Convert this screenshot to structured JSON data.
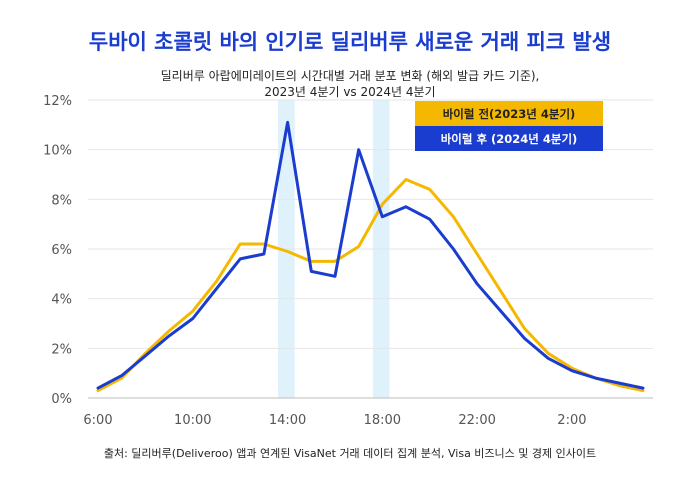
{
  "chart_data": {
    "type": "line",
    "title": "두바이 초콜릿 바의 인기로 딜리버루 새로운 거래 피크 발생",
    "subtitle_line1": "딜리버루 아랍에미레이트의 시간대별 거래 분포 변화 (해외 발급 카드 기준),",
    "subtitle_line2": "2023년 4분기 vs 2024년 4분기",
    "xlabel": "",
    "ylabel": "",
    "x": [
      6,
      7,
      8,
      9,
      10,
      11,
      12,
      13,
      14,
      15,
      16,
      17,
      18,
      19,
      20,
      21,
      22,
      23,
      24,
      25,
      26,
      27,
      28,
      29
    ],
    "x_tick_labels": [
      "6:00",
      "10:00",
      "14:00",
      "18:00",
      "22:00",
      "2:00"
    ],
    "x_tick_values": [
      6,
      10,
      14,
      18,
      22,
      26
    ],
    "xlim": [
      6,
      29
    ],
    "y_tick_labels": [
      "0%",
      "2%",
      "4%",
      "6%",
      "8%",
      "10%",
      "12%"
    ],
    "y_tick_values": [
      0,
      2,
      4,
      6,
      8,
      10,
      12
    ],
    "ylim": [
      0,
      12
    ],
    "grid": "horizontal",
    "legend_position": "top-right",
    "highlight_bands": [
      [
        13.6,
        14.3
      ],
      [
        17.6,
        18.3
      ]
    ],
    "series": [
      {
        "name": "바이럴 전(2023년 4분기)",
        "color": "#f5b800",
        "values": [
          0.3,
          0.8,
          1.8,
          2.7,
          3.5,
          4.7,
          6.2,
          6.2,
          5.9,
          5.5,
          5.5,
          6.1,
          7.8,
          8.8,
          8.4,
          7.3,
          5.8,
          4.3,
          2.8,
          1.8,
          1.2,
          0.8,
          0.5,
          0.3
        ]
      },
      {
        "name": "바이럴 후 (2024년 4분기)",
        "color": "#1a3ccf",
        "values": [
          0.4,
          0.9,
          1.7,
          2.5,
          3.2,
          4.4,
          5.6,
          5.8,
          11.1,
          5.1,
          4.9,
          10.0,
          7.3,
          7.7,
          7.2,
          6.0,
          4.6,
          3.5,
          2.4,
          1.6,
          1.1,
          0.8,
          0.6,
          0.4
        ]
      }
    ],
    "source": "출처: 딜리버루(Deliveroo) 앱과 연계된 VisaNet 거래 데이터 집계 분석, Visa 비즈니스 및 경제 인사이트"
  }
}
